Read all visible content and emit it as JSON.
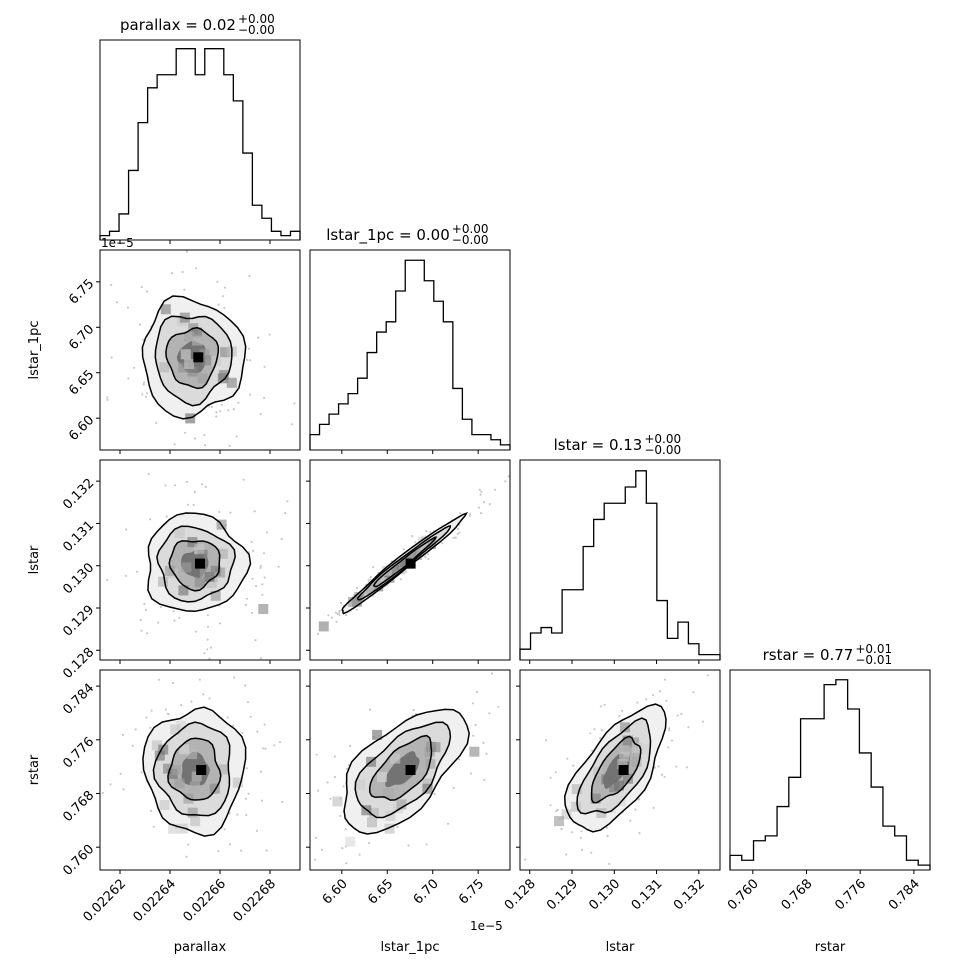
{
  "chart_data": {
    "type": "corner",
    "parameters": [
      "parallax",
      "lstar_1pc",
      "lstar",
      "rstar"
    ],
    "titles": [
      {
        "name": "parallax",
        "text": "parallax = 0.02",
        "sup": "+0.00",
        "sub": "−0.00"
      },
      {
        "name": "lstar_1pc",
        "text": "lstar_1pc = 0.00",
        "sup": "+0.00",
        "sub": "−0.00"
      },
      {
        "name": "lstar",
        "text": "lstar = 0.13",
        "sup": "+0.00",
        "sub": "−0.00"
      },
      {
        "name": "rstar",
        "text": "rstar = 0.77",
        "sup": "+0.01",
        "sub": "−0.01"
      }
    ],
    "axes": {
      "parallax": {
        "range": [
          0.022612,
          0.022692
        ],
        "ticks": [
          0.02262,
          0.02264,
          0.02266,
          0.02268
        ],
        "tick_labels": [
          "0.02262",
          "0.02264",
          "0.02266",
          "0.02268"
        ],
        "offset": ""
      },
      "lstar_1pc": {
        "range": [
          6.565,
          6.785
        ],
        "ticks": [
          6.6,
          6.65,
          6.7,
          6.75
        ],
        "tick_labels": [
          "6.60",
          "6.65",
          "6.70",
          "6.75"
        ],
        "offset": "1e−5"
      },
      "lstar": {
        "range": [
          0.12777,
          0.1325
        ],
        "ticks": [
          0.128,
          0.129,
          0.13,
          0.131,
          0.132
        ],
        "tick_labels": [
          "0.128",
          "0.129",
          "0.130",
          "0.131",
          "0.132"
        ],
        "offset": ""
      },
      "rstar": {
        "range": [
          0.7566,
          0.7864
        ],
        "ticks": [
          0.76,
          0.768,
          0.776,
          0.784
        ],
        "tick_labels": [
          "0.760",
          "0.768",
          "0.776",
          "0.784"
        ],
        "offset": ""
      }
    },
    "histograms": {
      "parallax": {
        "values": [
          1,
          2,
          6,
          16,
          27,
          35,
          38,
          38,
          44,
          44,
          38,
          44,
          44,
          38,
          32,
          20,
          8,
          5,
          2,
          1,
          2
        ],
        "ymax": 46
      },
      "lstar_1pc": {
        "values": [
          3,
          5,
          7,
          9,
          11,
          14,
          19,
          23,
          25,
          31,
          37,
          37,
          33,
          29,
          25,
          12,
          6,
          3,
          3,
          2,
          1
        ],
        "ymax": 39
      },
      "lstar": {
        "values": [
          2,
          5,
          6,
          5,
          13,
          13,
          21,
          26,
          29,
          29,
          32,
          35,
          29,
          11,
          4,
          7,
          3,
          1,
          1
        ],
        "ymax": 37
      },
      "rstar": {
        "values": [
          3,
          2,
          6,
          7,
          13,
          19,
          31,
          31,
          38,
          39,
          33,
          24,
          17,
          9,
          7,
          2,
          1
        ],
        "ymax": 41
      }
    },
    "pairs": [
      {
        "x": "parallax",
        "y": "lstar_1pc",
        "center": [
          0.022649,
          6.667
        ],
        "sd": [
          1.02e-05,
          0.032
        ],
        "rho": 0.0
      },
      {
        "x": "parallax",
        "y": "lstar",
        "center": [
          0.02265,
          0.13005
        ],
        "sd": [
          1e-05,
          0.00058
        ],
        "rho": 0.0
      },
      {
        "x": "parallax",
        "y": "rstar",
        "center": [
          0.02265,
          0.7715
        ],
        "sd": [
          1e-05,
          0.0046
        ],
        "rho": 0.0
      },
      {
        "x": "lstar_1pc",
        "y": "lstar",
        "center": [
          6.667,
          0.13005
        ],
        "sd": [
          0.034,
          0.00058
        ],
        "rho": 0.985
      },
      {
        "x": "lstar_1pc",
        "y": "rstar",
        "center": [
          6.667,
          0.7715
        ],
        "sd": [
          0.034,
          0.0046
        ],
        "rho": 0.6
      },
      {
        "x": "lstar",
        "y": "rstar",
        "center": [
          0.13005,
          0.7715
        ],
        "sd": [
          0.00058,
          0.0046
        ],
        "rho": 0.65
      }
    ],
    "grid": false,
    "legend": "none"
  }
}
